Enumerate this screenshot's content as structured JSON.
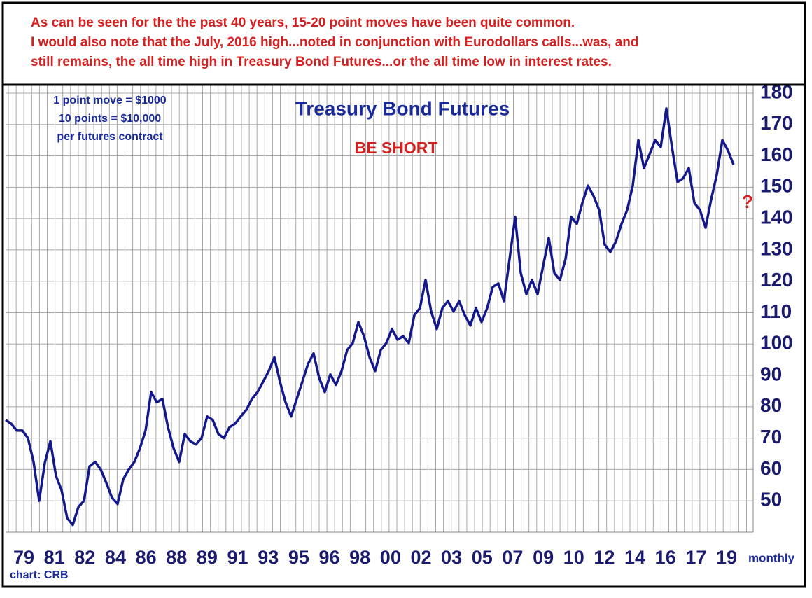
{
  "chart_data": {
    "type": "line",
    "title": "Treasury Bond Futures",
    "notes": [
      "As can be seen for the the past 40 years, 15-20 point moves have been quite common.",
      "I would also note that the July, 2016 high...noted in conjunction with Eurodollars calls...was, and",
      "still remains, the all time high in Treasury Bond Futures...or the all time low in interest rates."
    ],
    "info": [
      "1 point move = $1000",
      "10 points = $10,000",
      "per futures contract"
    ],
    "annotations": [
      "BE SHORT",
      "?"
    ],
    "x_label": "monthly",
    "source": "chart: CRB",
    "x_labels": [
      "79",
      "81",
      "82",
      "84",
      "86",
      "88",
      "89",
      "91",
      "93",
      "95",
      "96",
      "98",
      "00",
      "02",
      "03",
      "05",
      "07",
      "09",
      "10",
      "12",
      "14",
      "16",
      "17",
      "19"
    ],
    "ylim": [
      40,
      182
    ],
    "yticks": [
      50,
      60,
      70,
      80,
      90,
      100,
      110,
      120,
      130,
      140,
      150,
      160,
      170,
      180
    ],
    "grid": true,
    "color": "#13198a",
    "values": [
      75.8,
      74.6,
      72.4,
      72.4,
      70,
      62.4,
      50,
      62,
      69,
      58,
      53.4,
      44.5,
      42.3,
      48,
      50,
      61,
      62.4,
      60,
      55.7,
      51,
      49,
      56.8,
      60,
      62.4,
      66.8,
      72.4,
      84.7,
      81.4,
      82.5,
      73.5,
      66.8,
      62.4,
      71.3,
      69,
      68,
      70,
      76.9,
      75.8,
      71.3,
      70,
      73.5,
      74.6,
      76.9,
      79,
      82.5,
      84.7,
      88,
      91.4,
      95.8,
      88,
      81.4,
      76.9,
      82.5,
      88,
      93.6,
      97,
      89.2,
      84.7,
      90.3,
      87,
      91.4,
      98.1,
      100.3,
      107,
      102.5,
      95.8,
      91.4,
      98.1,
      100.3,
      104.8,
      101.4,
      102.5,
      100.3,
      109.2,
      111.5,
      120.4,
      110.4,
      104.8,
      111.5,
      113.7,
      110.4,
      113.7,
      109.2,
      105.9,
      111.5,
      107,
      111.5,
      118.2,
      119.3,
      113.7,
      127.1,
      140.5,
      122.6,
      115.9,
      120.4,
      115.9,
      124.9,
      133.8,
      122.6,
      120.4,
      127.1,
      140.5,
      138.3,
      145,
      150.5,
      147.2,
      142.7,
      131.6,
      129.3,
      132.7,
      138.3,
      142.7,
      150.5,
      165,
      156.1,
      160.5,
      165,
      162.8,
      175.1,
      162.8,
      151.7,
      152.8,
      156.1,
      145,
      142.7,
      137.1,
      146.1,
      153.9,
      165,
      161.7,
      157.2
    ]
  }
}
